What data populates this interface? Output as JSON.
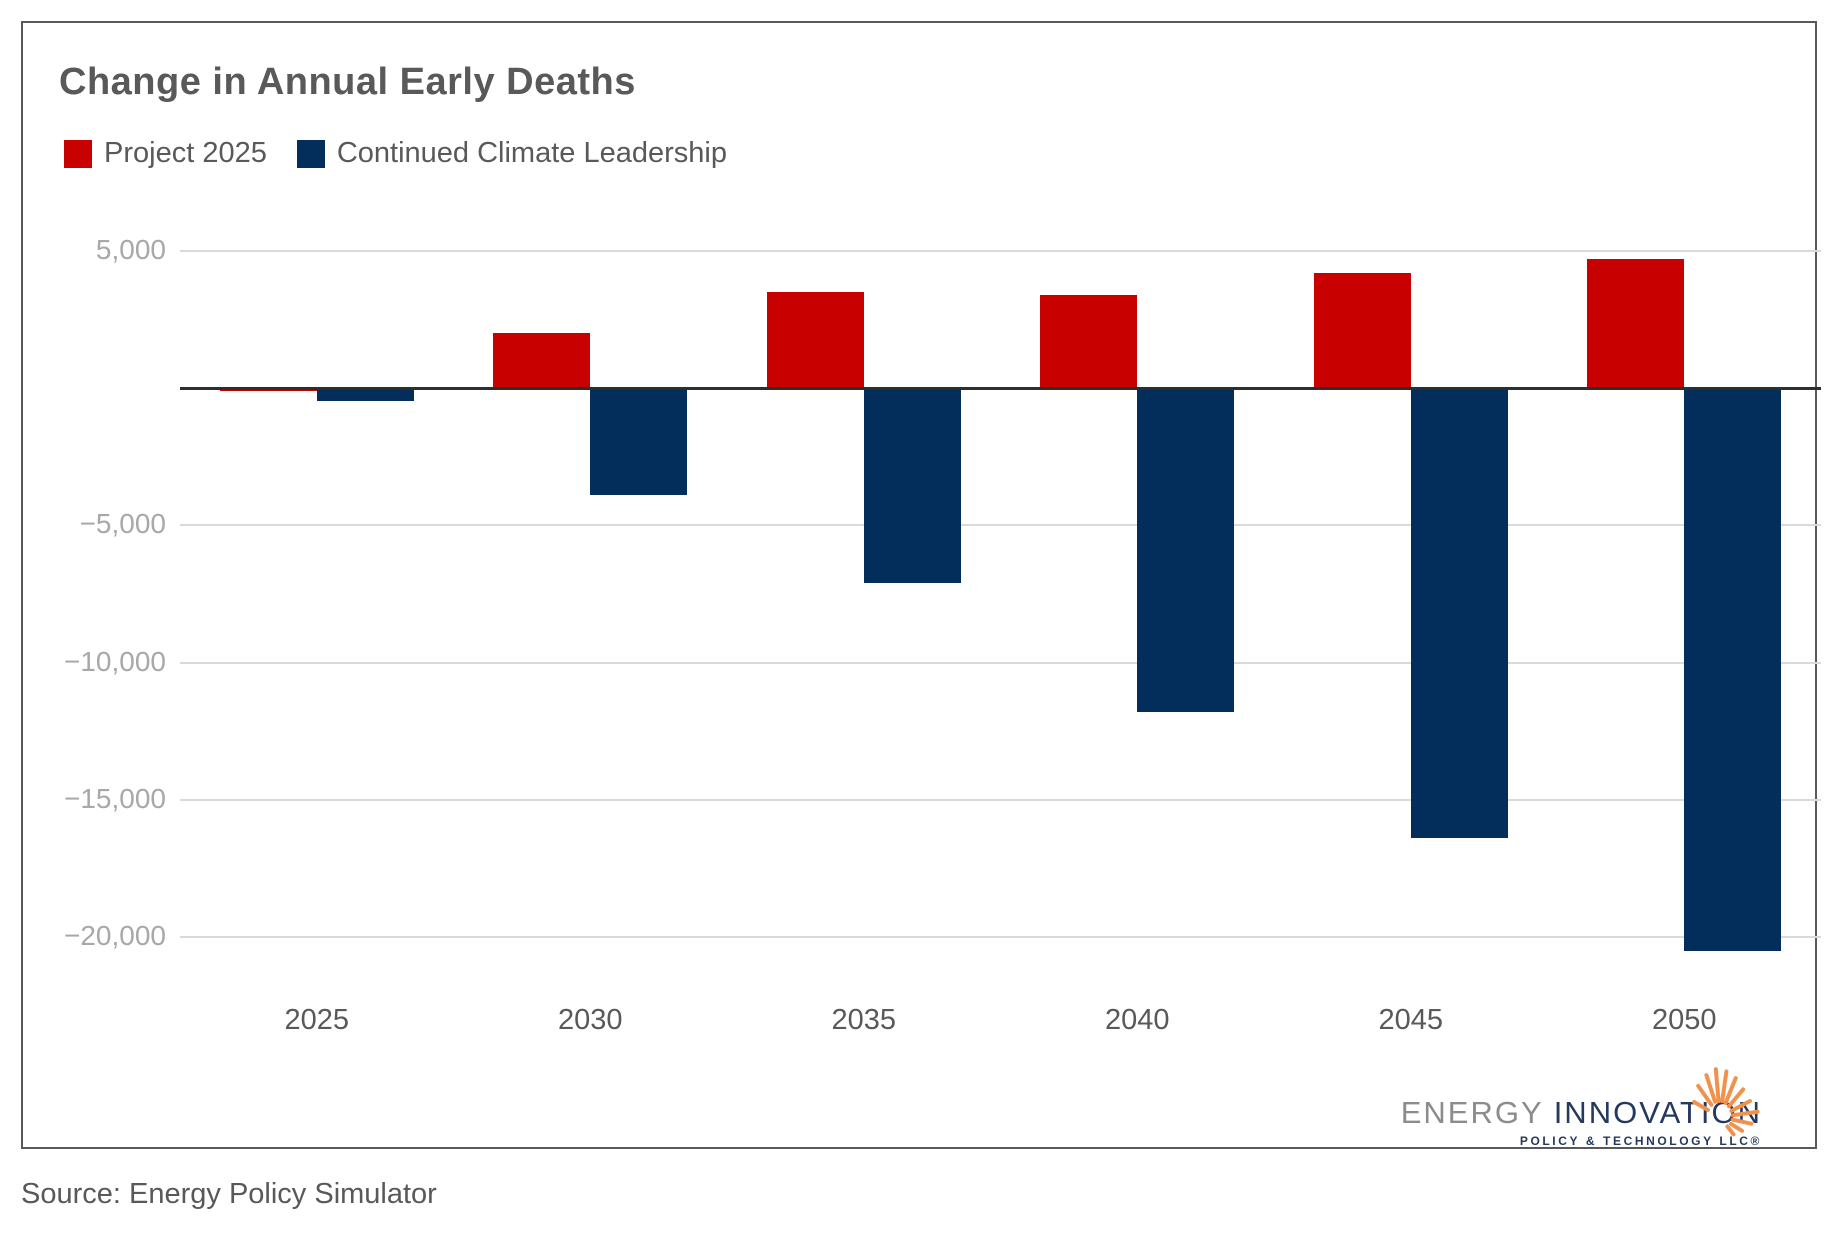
{
  "card": {
    "title": "Change in Annual Early Deaths",
    "legend": [
      {
        "label": "Project 2025",
        "color": "#C80000"
      },
      {
        "label": "Continued Climate Leadership",
        "color": "#032E5B"
      }
    ]
  },
  "footer": {
    "source": "Source: Energy Policy Simulator"
  },
  "logo": {
    "energy": "ENERGY",
    "innovation": "INNOVATION",
    "subtitle": "POLICY & TECHNOLOGY LLC®",
    "gray": "#8C8C8C",
    "navy": "#24395E",
    "orange": "#F0924C"
  },
  "chart_data": {
    "type": "bar",
    "title": "Change in Annual Early Deaths",
    "categories": [
      "2025",
      "2030",
      "2035",
      "2040",
      "2045",
      "2050"
    ],
    "series": [
      {
        "name": "Project 2025",
        "color": "#C80000",
        "values": [
          -100,
          2000,
          3500,
          3400,
          4200,
          4700
        ]
      },
      {
        "name": "Continued Climate Leadership",
        "color": "#032E5B",
        "values": [
          -450,
          -3900,
          -7100,
          -11800,
          -16400,
          -20500
        ]
      }
    ],
    "xlabel": "",
    "ylabel": "",
    "ylim": [
      -21500,
      7300
    ],
    "yticks": [
      {
        "value": 5000,
        "label": "5,000"
      },
      {
        "value": 0,
        "label": ""
      },
      {
        "value": -5000,
        "label": "−5,000"
      },
      {
        "value": -10000,
        "label": "−10,000"
      },
      {
        "value": -15000,
        "label": "−15,000"
      },
      {
        "value": -20000,
        "label": "−20,000"
      }
    ],
    "grid": true,
    "legend_position": "top-left",
    "colors": {
      "gridline": "#DADADA",
      "zero_line": "#2E2E2E",
      "y_tick_text": "#A8A8A8",
      "x_tick_text": "#595959",
      "title_text": "#595959"
    }
  }
}
